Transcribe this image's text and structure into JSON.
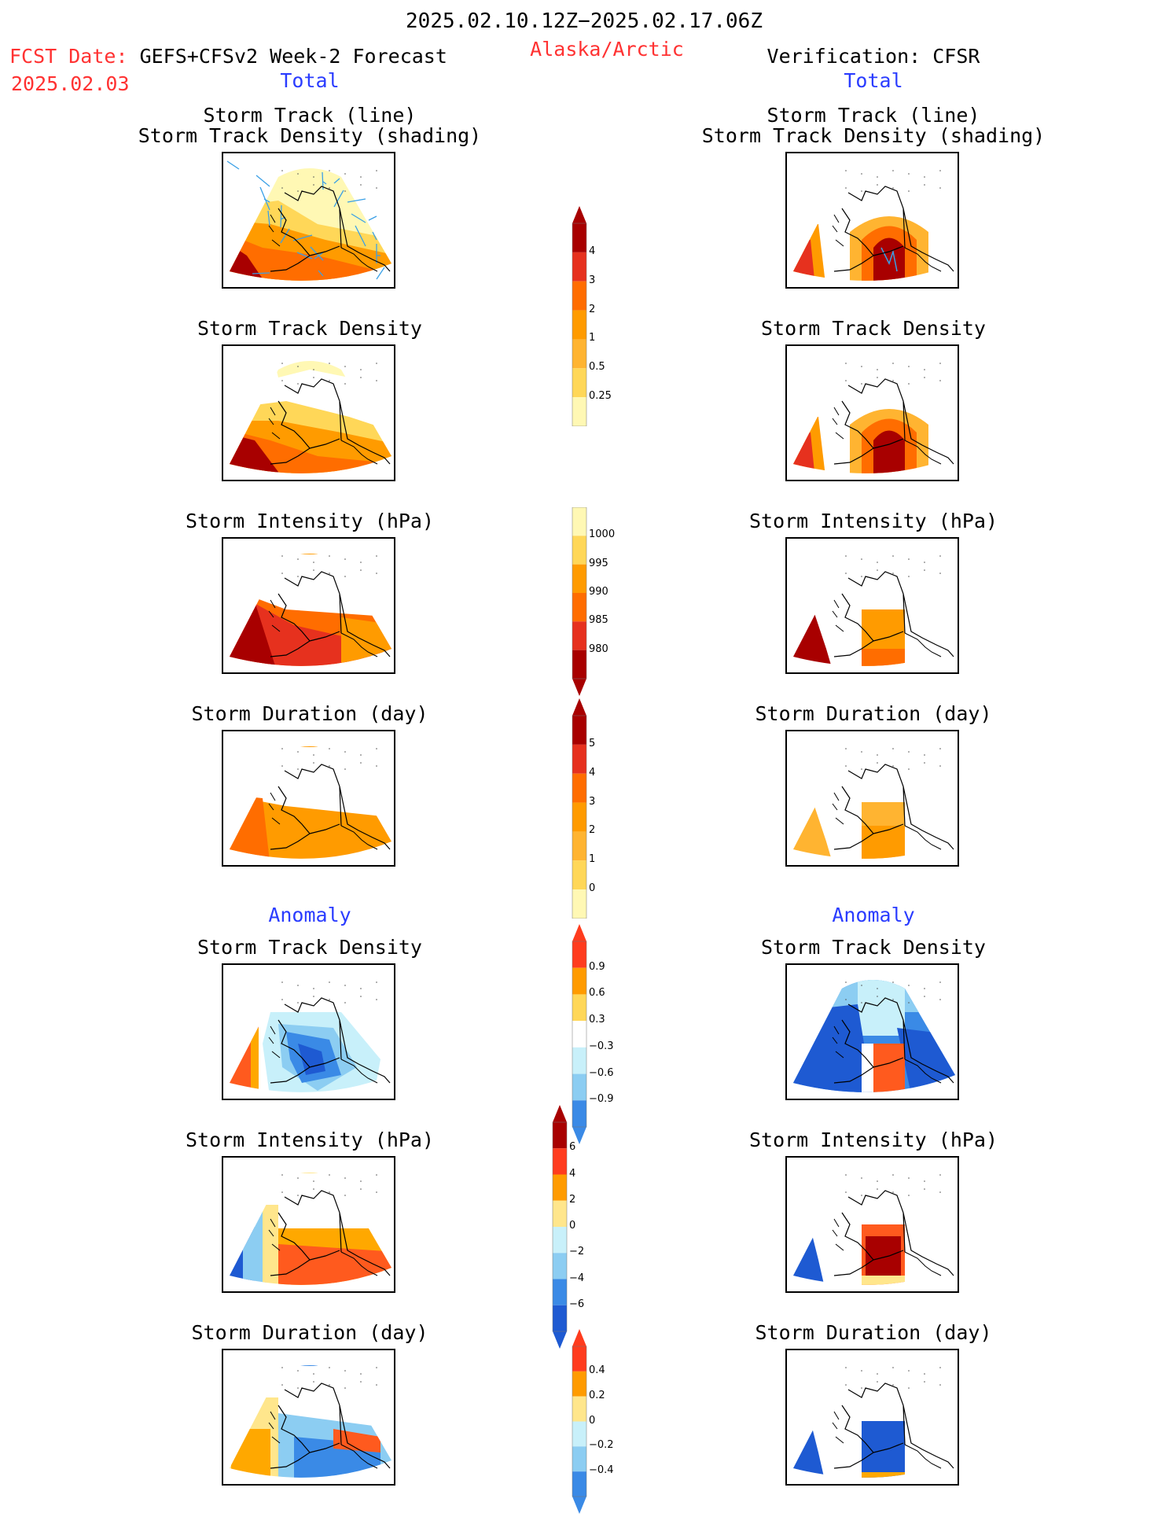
{
  "header": {
    "period": "2025.02.10.12Z−2025.02.17.06Z",
    "region": "Alaska/Arctic",
    "fcst_label": "FCST Date:",
    "forecast_model": "GEFS+CFSv2 Week-2 Forecast",
    "fcst_date": "2025.02.03",
    "verification": "Verification: CFSR"
  },
  "sections": {
    "total": "Total",
    "anomaly": "Anomaly"
  },
  "panel_titles": {
    "track_line": "Storm Track (line)",
    "track_density_shading": "Storm Track Density (shading)",
    "track_density": "Storm Track Density",
    "intensity": "Storm Intensity (hPa)",
    "duration": "Storm Duration (day)"
  },
  "colorbars": {
    "density_total": [
      "4",
      "3",
      "2",
      "1",
      "0.5",
      "0.25"
    ],
    "intensity_total": [
      "1000",
      "995",
      "990",
      "985",
      "980"
    ],
    "duration_total": [
      "5",
      "4",
      "3",
      "2",
      "1",
      "0"
    ],
    "density_anom": [
      "0.9",
      "0.6",
      "0.3",
      "−0.3",
      "−0.6",
      "−0.9"
    ],
    "intensity_anom": [
      "6",
      "4",
      "2",
      "0",
      "−2",
      "−4",
      "−6"
    ],
    "duration_anom": [
      "0.4",
      "0.2",
      "0",
      "−0.2",
      "−0.4"
    ]
  },
  "colors": {
    "title_red": "#ff3232",
    "label_blue": "#2a3cff",
    "warm_scale": [
      "#fff8b4",
      "#ffd758",
      "#ffb431",
      "#ff9b00",
      "#ff6d00",
      "#e6311e",
      "#a80000"
    ],
    "anom_scale": [
      "#1e5ad2",
      "#3a8ae6",
      "#8ccdf2",
      "#c8f0fa",
      "#ffffff",
      "#ffe68c",
      "#ffa800",
      "#ff5a1e",
      "#a80000"
    ]
  },
  "map_panels": {
    "left": [
      "track_line",
      "track_density",
      "intensity",
      "duration",
      "anom_density",
      "anom_intensity",
      "anom_duration"
    ],
    "right": [
      "track_line",
      "track_density",
      "intensity",
      "duration",
      "anom_density",
      "anom_intensity",
      "anom_duration"
    ]
  }
}
